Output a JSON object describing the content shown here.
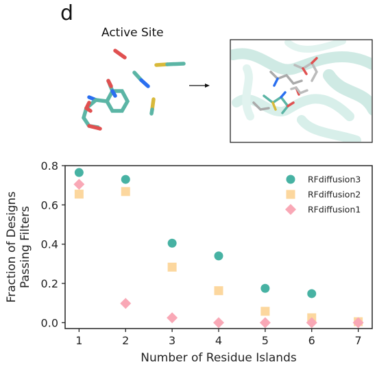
{
  "panel_label": "d",
  "illustration": {
    "title": "Active Site",
    "colors": {
      "teal": "#5bb5a5",
      "red": "#e05050",
      "blue": "#2a6ff0",
      "yellow": "#d8b93a",
      "light_teal": "#cfeae4"
    }
  },
  "chart_data": {
    "type": "scatter",
    "xlabel": "Number of Residue Islands",
    "ylabel": "Fraction of Designs\nPassing Filters",
    "xlim": [
      0.7,
      7.3
    ],
    "ylim": [
      -0.03,
      0.8
    ],
    "xticks": [
      1,
      2,
      3,
      4,
      5,
      6,
      7
    ],
    "yticks": [
      0.0,
      0.2,
      0.4,
      0.6,
      0.8
    ],
    "ytick_labels": [
      "0.0",
      "0.2",
      "0.4",
      "0.6",
      "0.8"
    ],
    "legend_position": "top-right",
    "grid": false,
    "series": [
      {
        "name": "RFdiffusion3",
        "marker": "circle",
        "color": "#47b2a3",
        "x": [
          1,
          2,
          3,
          4,
          5,
          6
        ],
        "y": [
          0.765,
          0.73,
          0.405,
          0.34,
          0.175,
          0.148
        ]
      },
      {
        "name": "RFdiffusion2",
        "marker": "square",
        "color": "#fcd79e",
        "x": [
          1,
          2,
          3,
          4,
          5,
          6,
          7
        ],
        "y": [
          0.655,
          0.668,
          0.283,
          0.163,
          0.058,
          0.025,
          0.005
        ]
      },
      {
        "name": "RFdiffusion1",
        "marker": "diamond",
        "color": "#f9a8b6",
        "x": [
          1,
          2,
          3,
          4,
          5,
          6,
          7
        ],
        "y": [
          0.705,
          0.098,
          0.025,
          0.0,
          0.0,
          0.0,
          0.0
        ]
      }
    ]
  }
}
